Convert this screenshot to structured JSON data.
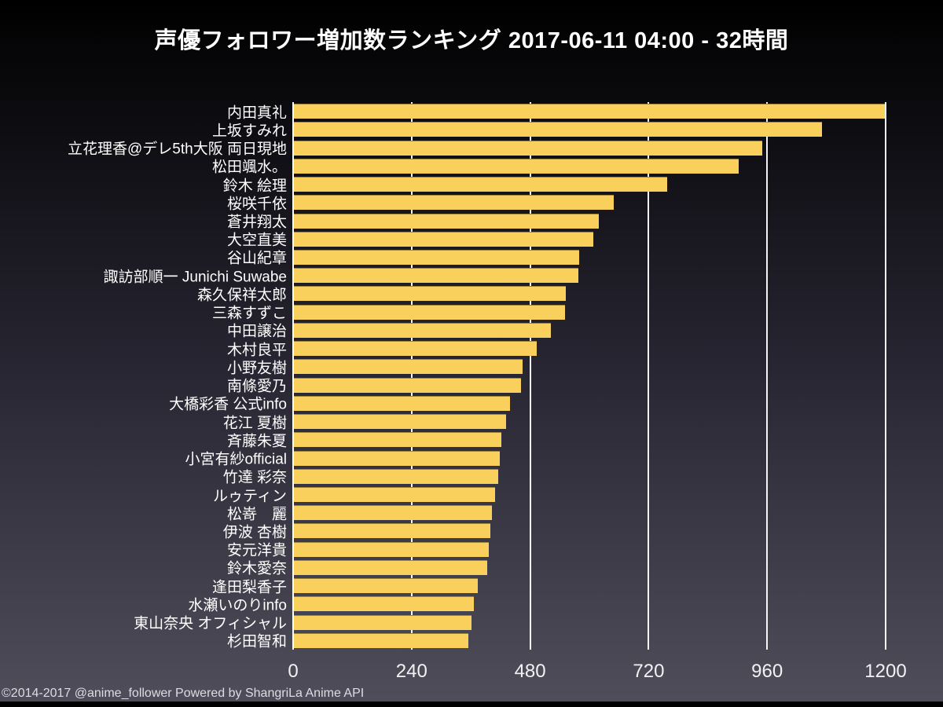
{
  "page": {
    "title": "声優フォロワー増加数ランキング 2017-06-11 04:00 - 32時間",
    "footer": "©2014-2017 @anime_follower Powered by ShangriLa Anime API"
  },
  "chart_data": {
    "type": "bar",
    "orientation": "horizontal",
    "title": "声優フォロワー増加数ランキング 2017-06-11 04:00 - 32時間",
    "categories": [
      "内田真礼",
      "上坂すみれ",
      "立花理香@デレ5th大阪 両日現地",
      "松田颯水。",
      "鈴木 絵理",
      "桜咲千依",
      "蒼井翔太",
      "大空直美",
      "谷山紀章",
      "諏訪部順一 Junichi Suwabe",
      "森久保祥太郎",
      "三森すずこ",
      "中田譲治",
      "木村良平",
      "小野友樹",
      "南條愛乃",
      "大橋彩香 公式info",
      "花江 夏樹",
      "斉藤朱夏",
      "小宮有紗official",
      "竹達 彩奈",
      "ルゥティン",
      "松嵜　麗",
      "伊波 杏樹",
      "安元洋貴",
      "鈴木愛奈",
      "逢田梨香子",
      "水瀬いのりinfo",
      "東山奈央 オフィシャル",
      "杉田智和"
    ],
    "values": [
      1197,
      1069,
      949,
      900,
      756,
      647,
      618,
      607,
      578,
      576,
      550,
      549,
      520,
      492,
      463,
      460,
      437,
      430,
      420,
      417,
      413,
      408,
      401,
      398,
      395,
      391,
      372,
      365,
      360,
      354
    ],
    "xlabel": "",
    "ylabel": "",
    "xlim": [
      0,
      1200
    ],
    "xticks": [
      0,
      240,
      480,
      720,
      960,
      1200
    ],
    "grid": "vertical white gridlines behind bars",
    "legend": "none",
    "colors": {
      "bar": "#f9d05c",
      "text": "#ffffff",
      "grid": "#ffffff",
      "background_top": "#000000",
      "background_bottom": "#504d5a"
    }
  }
}
